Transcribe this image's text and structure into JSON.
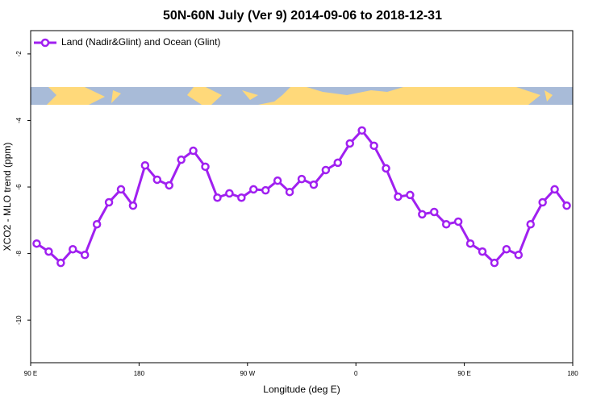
{
  "chart_data": {
    "type": "line",
    "title": "50N-60N July (Ver 9)   2014-09-06 to 2018-12-31",
    "x_label": "Longitude (deg E)",
    "y_label": "XCO2 - MLO trend (ppm)",
    "x": [
      95,
      105,
      115,
      125,
      135,
      145,
      155,
      165,
      175,
      185,
      195,
      205,
      215,
      225,
      235,
      245,
      255,
      265,
      275,
      285,
      295,
      305,
      315,
      325,
      335,
      345,
      355,
      365,
      375,
      385,
      395,
      405,
      415,
      425,
      435,
      445,
      455,
      465,
      475,
      485,
      495,
      505,
      515,
      525,
      535
    ],
    "series": [
      {
        "name": "Land (Nadir&Glint) and Ocean (Glint)",
        "color": "#a020f0",
        "values": [
          -7.7,
          -7.94,
          -8.28,
          -7.87,
          -8.04,
          -7.12,
          -6.46,
          -6.07,
          -6.56,
          -5.35,
          -5.78,
          -5.95,
          -5.18,
          -4.91,
          -5.39,
          -6.32,
          -6.19,
          -6.32,
          -6.07,
          -6.1,
          -5.81,
          -6.15,
          -5.76,
          -5.93,
          -5.49,
          -5.27,
          -4.69,
          -4.3,
          -4.76,
          -5.44,
          -6.29,
          -6.24,
          -6.82,
          -6.75,
          -7.12,
          -7.04,
          -7.7,
          -7.94,
          -8.28,
          -7.87,
          -8.04,
          -7.12,
          -6.46,
          -6.07,
          -6.56
        ]
      }
    ],
    "xlim": [
      90,
      540
    ],
    "xticks": [
      {
        "value": 90,
        "label": "90 E"
      },
      {
        "value": 180,
        "label": "180"
      },
      {
        "value": 270,
        "label": "90 W"
      },
      {
        "value": 360,
        "label": "0"
      },
      {
        "value": 450,
        "label": "90 E"
      },
      {
        "value": 540,
        "label": "180"
      }
    ],
    "ylim": [
      -11.28,
      -1.3
    ],
    "yticks": [
      -2,
      -4,
      -6,
      -8,
      -10
    ],
    "legend": "top-left"
  }
}
